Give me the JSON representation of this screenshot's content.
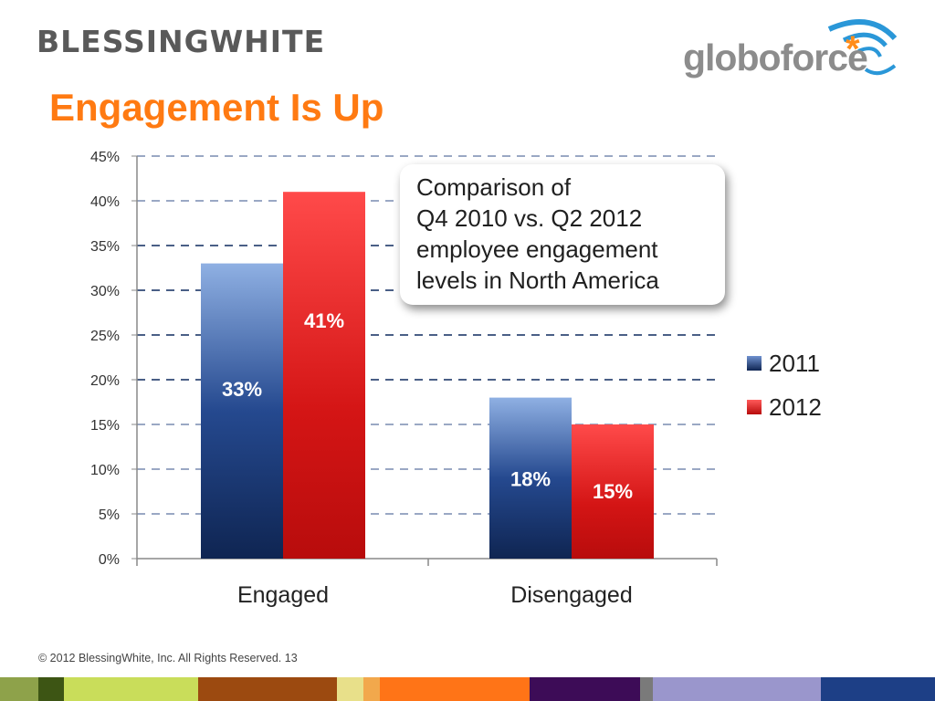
{
  "header": {
    "left_logo_text": "BLESSINGWHITE",
    "right_logo_text": "globoforce",
    "right_logo_mark": "*",
    "title": "Engagement Is Up"
  },
  "callout": {
    "lines": [
      "Comparison of",
      "Q4 2010 vs. Q2 2012",
      "employee engagement",
      "levels in North America"
    ]
  },
  "chart_data": {
    "type": "bar",
    "categories": [
      "Engaged",
      "Disengaged"
    ],
    "series": [
      {
        "name": "2011",
        "values": [
          33,
          18
        ],
        "labels": [
          "33%",
          "18%"
        ],
        "color": "#1a3a73"
      },
      {
        "name": "2012",
        "values": [
          41,
          15
        ],
        "labels": [
          "41%",
          "15%"
        ],
        "color": "#d81c1c"
      }
    ],
    "ylim": [
      0,
      45
    ],
    "yticks": [
      "0%",
      "5%",
      "10%",
      "15%",
      "20%",
      "25%",
      "30%",
      "35%",
      "40%",
      "45%"
    ],
    "grid": "dashed horizontal",
    "legend_position": "right"
  },
  "footer": {
    "text": "© 2012 BlessingWhite, Inc. All Rights Reserved.  13"
  },
  "strip_colors": [
    "#8ea24a",
    "#3d5514",
    "#c9dd5a",
    "#9c4a10",
    "#e8e08a",
    "#f2a84c",
    "#ff7417",
    "#3d0c57",
    "#7a7a7a",
    "#9a96cc",
    "#1d3f86"
  ]
}
